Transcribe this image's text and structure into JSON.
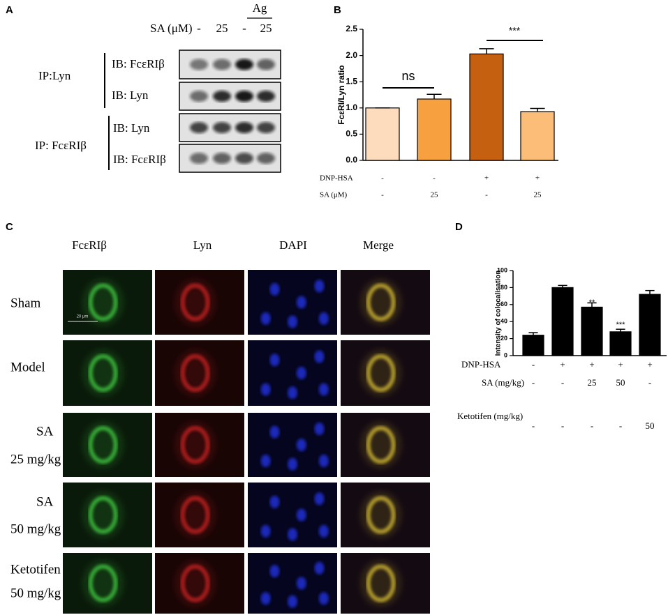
{
  "panel_labels": [
    "A",
    "B",
    "C",
    "D"
  ],
  "blot": {
    "sa_label": "SA (μM)",
    "lanes": [
      "-",
      "25",
      "-",
      "25"
    ],
    "ag_label": "Ag",
    "ip_groups": [
      {
        "ip": "IP:Lyn",
        "ib": [
          "IB: FcεRIβ",
          "IB: Lyn"
        ]
      },
      {
        "ip": "IP: FcεRIβ",
        "ib": [
          "IB: Lyn",
          "IB: FcεRIβ"
        ]
      }
    ]
  },
  "microscopy": {
    "columns": [
      "FcεRIβ",
      "Lyn",
      "DAPI",
      "Merge"
    ],
    "rows": [
      {
        "lines": [
          "Sham"
        ]
      },
      {
        "lines": [
          "Model"
        ]
      },
      {
        "lines": [
          "SA",
          "25 mg/kg"
        ]
      },
      {
        "lines": [
          "SA",
          "50 mg/kg"
        ]
      },
      {
        "lines": [
          "Ketotifen",
          "50 mg/kg"
        ]
      }
    ],
    "scale_bar": "20 μm"
  },
  "chart_data": [
    {
      "type": "bar",
      "y_label": "FcεRI/Lyn ratio",
      "values": [
        1.0,
        1.17,
        2.03,
        0.93
      ],
      "errors": [
        0,
        0.09,
        0.1,
        0.06
      ],
      "colors": [
        "#fddcbd",
        "#f7a03f",
        "#c4600f",
        "#fbbd78"
      ],
      "ylim": [
        0,
        2.5
      ],
      "yticks": [
        {
          "value": 0,
          "label": "0.0"
        },
        0.5,
        {
          "value": 1,
          "label": "1.0"
        },
        1.5,
        {
          "value": 2,
          "label": "2.0"
        },
        2.5
      ],
      "annotations": [
        "ns",
        "***"
      ],
      "conditions": [
        {
          "label": "DNP-HSA",
          "values": [
            "-",
            "-",
            "+",
            "+"
          ]
        },
        {
          "label": "SA (μM)",
          "values": [
            "-",
            "25",
            "-",
            "25"
          ]
        }
      ]
    },
    {
      "type": "bar",
      "y_label": "Intensity of colocalisation",
      "values": [
        24,
        80,
        57,
        28,
        72
      ],
      "errors": [
        3,
        2.5,
        5,
        3,
        4.5
      ],
      "colors": [
        "#000000",
        "#000000",
        "#000000",
        "#000000",
        "#000000"
      ],
      "ylim": [
        0,
        100
      ],
      "yticks": [
        0,
        20,
        40,
        60,
        80,
        100
      ],
      "annotations": [
        "**",
        "***"
      ],
      "conditions": [
        {
          "label": "DNP-HSA",
          "values": [
            "-",
            "+",
            "+",
            "+",
            "+"
          ]
        },
        {
          "label": "SA (mg/kg)",
          "values": [
            "-",
            "-",
            "25",
            "50",
            "-"
          ]
        },
        {
          "label": "Ketotifen (mg/kg)",
          "values": [
            "-",
            "-",
            "-",
            "-",
            "50"
          ]
        }
      ]
    }
  ]
}
